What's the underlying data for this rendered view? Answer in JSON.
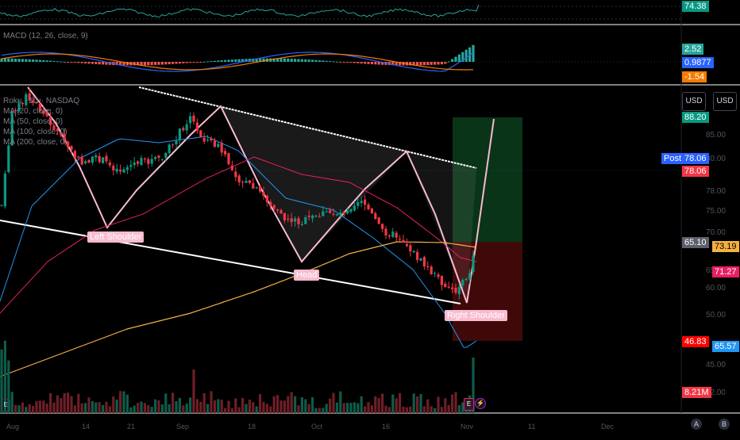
{
  "chart": {
    "symbol_line": "Roku · 1D · NASDAQ",
    "legend": [
      "MA (20, close, 0)",
      "MA (50, close, 0)",
      "MA (100, close, 0)",
      "MA (200, close, 0)"
    ],
    "macd_legend": "MACD (12, 26, close, 9)",
    "currency_left": "USD",
    "currency_right": "USD",
    "post_label": "Post",
    "x_ticks": [
      "Aug",
      "14",
      "21",
      "Sep",
      "18",
      "Oct",
      "16",
      "Nov",
      "11",
      "Dec"
    ],
    "axis_ticks_mid": [
      "85.00",
      "80.00",
      "78.00",
      "75.00",
      "70.00",
      "66.00",
      "65.00",
      "60.00",
      "55.00",
      "50.00",
      "45.00",
      "42.00"
    ],
    "pattern_labels": [
      "Left Shoulder",
      "Head",
      "Right Shoulder"
    ],
    "event_badges": [
      "E",
      "E"
    ],
    "circle_buttons": [
      "A",
      "B"
    ]
  },
  "price_badges": {
    "rsi": {
      "text": "74.38",
      "color": "#089981"
    },
    "macd_hist": {
      "text": "2.52",
      "color": "#26a69a"
    },
    "macd_line": {
      "text": "0.9877",
      "color": "#2962ff"
    },
    "macd_signal": {
      "text": "-1.54",
      "color": "#f57c00"
    },
    "target": {
      "text": "88.20",
      "color": "#089981"
    },
    "post": {
      "text": "78.06",
      "color": "#2962ff"
    },
    "last": {
      "text": "78.06",
      "color": "#f23645"
    },
    "entry": {
      "text": "65.10",
      "color": "#5d606b"
    },
    "ma100": {
      "text": "73.19",
      "color": "#f5b041"
    },
    "ma50": {
      "text": "71.27",
      "color": "#e91e63"
    },
    "stop": {
      "text": "46.83",
      "color": "#f23645"
    },
    "ma20": {
      "text": "65.57",
      "color": "#2196f3"
    },
    "volume": {
      "text": "8.21M",
      "color": "#f23645"
    }
  }
}
